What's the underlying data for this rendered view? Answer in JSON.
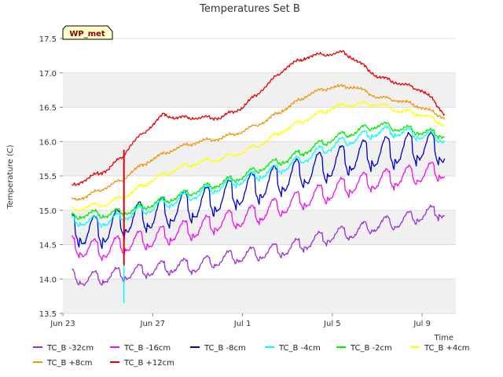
{
  "chart_data": {
    "type": "line",
    "title": "Temperatures Set B",
    "xlabel": "Time",
    "ylabel": "Temperature (C)",
    "badge": "WP_met",
    "xlim": [
      0,
      17.5
    ],
    "ylim": [
      13.5,
      17.5
    ],
    "x_unit": "days since Jun 23",
    "xticks": [
      {
        "x": 0,
        "label": "Jun 23"
      },
      {
        "x": 4,
        "label": "Jun 27"
      },
      {
        "x": 8,
        "label": "Jul 1"
      },
      {
        "x": 12,
        "label": "Jul 5"
      },
      {
        "x": 16,
        "label": "Jul 9"
      }
    ],
    "yticks": [
      13.5,
      14.0,
      14.5,
      15.0,
      15.5,
      16.0,
      16.5,
      17.0,
      17.5
    ],
    "grid": true,
    "legend_position": "bottom",
    "series": [
      {
        "name": "TC_B -32cm",
        "color": "#9b30d9",
        "amp": 0.1,
        "x": [
          0.4,
          1,
          2,
          3,
          4,
          5,
          6,
          7,
          8,
          9,
          10,
          11,
          12,
          13,
          14,
          15,
          16,
          17
        ],
        "values": [
          14.05,
          14.0,
          14.05,
          14.1,
          14.15,
          14.2,
          14.2,
          14.3,
          14.35,
          14.4,
          14.45,
          14.55,
          14.65,
          14.7,
          14.8,
          14.85,
          14.95,
          15.0
        ]
      },
      {
        "name": "TC_B +8cm",
        "color": "#f0960a",
        "amp": 0.02,
        "x": [
          0.4,
          1,
          2,
          2.7,
          3,
          4,
          5,
          6,
          7,
          8,
          9,
          10,
          11,
          12,
          13,
          14,
          15,
          16,
          17
        ],
        "values": [
          15.15,
          15.2,
          15.35,
          15.45,
          15.55,
          15.75,
          15.9,
          16.0,
          16.05,
          16.15,
          16.3,
          16.5,
          16.7,
          16.8,
          16.8,
          16.65,
          16.6,
          16.5,
          16.35
        ]
      },
      {
        "name": "TC_B -16cm",
        "color": "#ee10ee",
        "amp": 0.14,
        "x": [
          0.4,
          1,
          2,
          3,
          4,
          5,
          6,
          7,
          8,
          9,
          10,
          11,
          12,
          13,
          14,
          15,
          16,
          17
        ],
        "values": [
          14.5,
          14.45,
          14.45,
          14.55,
          14.6,
          14.7,
          14.75,
          14.85,
          14.9,
          15.0,
          15.1,
          15.2,
          15.3,
          15.4,
          15.45,
          15.5,
          15.55,
          15.6
        ]
      },
      {
        "name": "TC_B +12cm",
        "color": "#e80000",
        "amp": 0.02,
        "x": [
          0.4,
          1,
          2,
          2.7,
          3,
          4,
          4.5,
          5,
          6,
          7,
          8,
          9,
          10,
          11,
          12,
          12.5,
          13,
          14,
          15,
          16,
          16.5,
          17
        ],
        "values": [
          15.35,
          15.45,
          15.6,
          15.8,
          15.95,
          16.25,
          16.4,
          16.35,
          16.35,
          16.35,
          16.5,
          16.8,
          17.1,
          17.25,
          17.28,
          17.3,
          17.2,
          16.95,
          16.85,
          16.75,
          16.6,
          16.4
        ]
      },
      {
        "name": "TC_B -8cm",
        "color": "#0000cc",
        "amp": 0.22,
        "x": [
          0.4,
          1,
          2,
          3,
          4,
          5,
          6,
          7,
          8,
          9,
          10,
          11,
          12,
          13,
          14,
          15,
          16,
          17
        ],
        "values": [
          14.75,
          14.7,
          14.75,
          14.9,
          14.95,
          15.05,
          15.1,
          15.2,
          15.3,
          15.4,
          15.5,
          15.6,
          15.7,
          15.8,
          15.85,
          15.9,
          15.95,
          15.9
        ]
      },
      {
        "name": "TC_B -4cm",
        "color": "#00ffff",
        "amp": 0.07,
        "x": [
          0.4,
          1,
          2,
          3,
          4,
          5,
          6,
          7,
          8,
          9,
          10,
          11,
          12,
          13,
          14,
          15,
          16,
          17
        ],
        "values": [
          14.85,
          14.85,
          14.85,
          14.95,
          15.05,
          15.15,
          15.25,
          15.35,
          15.45,
          15.55,
          15.65,
          15.8,
          15.95,
          16.05,
          16.15,
          16.15,
          16.1,
          16.05
        ]
      },
      {
        "name": "TC_B -2cm",
        "color": "#00ee00",
        "amp": 0.05,
        "x": [
          0.4,
          1,
          2,
          3,
          4,
          5,
          6,
          7,
          8,
          9,
          10,
          11,
          12,
          13,
          14,
          15,
          16,
          17
        ],
        "values": [
          14.9,
          14.95,
          14.95,
          15.0,
          15.1,
          15.2,
          15.3,
          15.4,
          15.5,
          15.65,
          15.75,
          15.9,
          16.05,
          16.15,
          16.25,
          16.2,
          16.15,
          16.1
        ]
      },
      {
        "name": "TC_B +4cm",
        "color": "#ffff00",
        "amp": 0.03,
        "x": [
          0.4,
          1,
          2,
          3,
          4,
          5,
          6,
          7,
          8,
          9,
          10,
          11,
          12,
          13,
          14,
          15,
          16,
          17
        ],
        "values": [
          15.0,
          15.05,
          15.1,
          15.25,
          15.45,
          15.6,
          15.7,
          15.75,
          15.85,
          16.0,
          16.2,
          16.35,
          16.5,
          16.55,
          16.55,
          16.45,
          16.4,
          16.25
        ]
      }
    ],
    "spike": {
      "x": 2.72,
      "color": "#e80000",
      "from": 13.65,
      "to": 15.88
    }
  }
}
